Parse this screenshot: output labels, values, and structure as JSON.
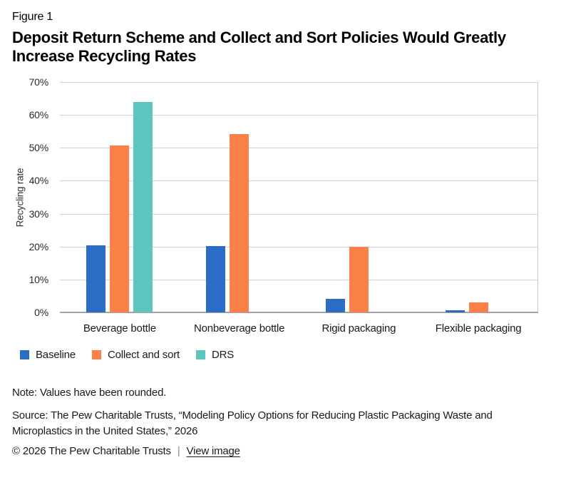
{
  "figure": {
    "label": "Figure 1",
    "title": "Deposit Return Scheme and Collect and Sort Policies Would Greatly Increase Recycling Rates"
  },
  "chart_data": {
    "type": "bar",
    "title": "Deposit Return Scheme and Collect and Sort Policies Would Greatly Increase Recycling Rates",
    "categories": [
      "Beverage bottle",
      "Nonbeverage bottle",
      "Rigid packaging",
      "Flexible packaging"
    ],
    "series": [
      {
        "name": "Baseline",
        "color": "#2B6CC4",
        "values": [
          20.3,
          20.1,
          4.1,
          0.7
        ]
      },
      {
        "name": "Collect and sort",
        "color": "#FC8149",
        "values": [
          50.8,
          54.2,
          20,
          3
        ]
      },
      {
        "name": "DRS",
        "color": "#5AC6BD",
        "values": [
          64,
          null,
          null,
          null
        ]
      }
    ],
    "xlabel": "",
    "ylabel": "Recycling rate",
    "ylim": [
      0,
      70
    ],
    "ytick_step": 10,
    "ytick_format": "percent",
    "grid": true,
    "legend_position": "bottom-left",
    "gridline_color": "#D4D4D4",
    "axis_line_color": "#A3A3A3"
  },
  "footer": {
    "note": "Note: Values have been rounded.",
    "source": "Source: The Pew Charitable Trusts, “Modeling Policy Options for Reducing Plastic Packaging Waste and Microplastics in the United States,” 2026",
    "copyright": "© 2026 The Pew Charitable Trusts",
    "separator": "|",
    "view_image_label": "View image"
  }
}
